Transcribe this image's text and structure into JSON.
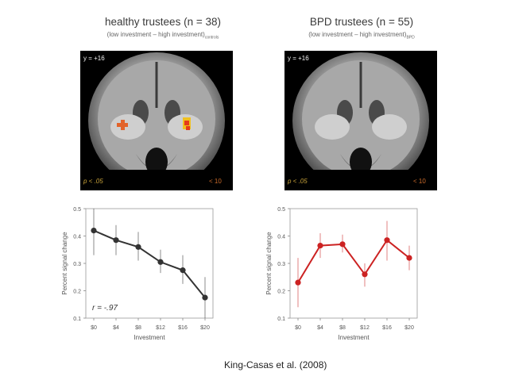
{
  "left_panel": {
    "title": "healthy trustees (n = 38)",
    "subtitle": "(low investment – high investment)",
    "subtitle_sub": "controls",
    "coord": "y = +16",
    "p_text": "p < .05",
    "scale_text": "< 10"
  },
  "right_panel": {
    "title": "BPD trustees (n = 55)",
    "subtitle": "(low investment – high investment)",
    "subtitle_sub": "BPD",
    "coord": "y = +16",
    "p_text": "p < .05",
    "scale_text": "< 10"
  },
  "citation": "King-Casas  et al. (2008)",
  "chart_data": [
    {
      "type": "line",
      "xlabel": "Investment",
      "ylabel": "Percent signal change",
      "categories": [
        "$0",
        "$4",
        "$8",
        "$12",
        "$16",
        "$20"
      ],
      "ylim": [
        0.1,
        0.5
      ],
      "yticks": [
        "0.1",
        "0.2",
        "0.3",
        "0.4",
        "0.5"
      ],
      "series": [
        {
          "values": [
            0.42,
            0.385,
            0.36,
            0.305,
            0.275,
            0.175
          ],
          "err_low": [
            0.33,
            0.33,
            0.31,
            0.265,
            0.225,
            0.1
          ],
          "err_high": [
            0.5,
            0.44,
            0.415,
            0.35,
            0.33,
            0.25
          ],
          "color": "#333333"
        }
      ],
      "annotation": "r = -.97"
    },
    {
      "type": "line",
      "xlabel": "Investment",
      "ylabel": "Percent signal change",
      "categories": [
        "$0",
        "$4",
        "$8",
        "$12",
        "$16",
        "$20"
      ],
      "ylim": [
        0.1,
        0.5
      ],
      "yticks": [
        "0.1",
        "0.2",
        "0.3",
        "0.4",
        "0.5"
      ],
      "series": [
        {
          "values": [
            0.23,
            0.365,
            0.37,
            0.26,
            0.385,
            0.32
          ],
          "err_low": [
            0.14,
            0.32,
            0.34,
            0.215,
            0.31,
            0.275
          ],
          "err_high": [
            0.32,
            0.41,
            0.405,
            0.3,
            0.455,
            0.365
          ],
          "color": "#cc2222"
        }
      ],
      "annotation": ""
    }
  ]
}
